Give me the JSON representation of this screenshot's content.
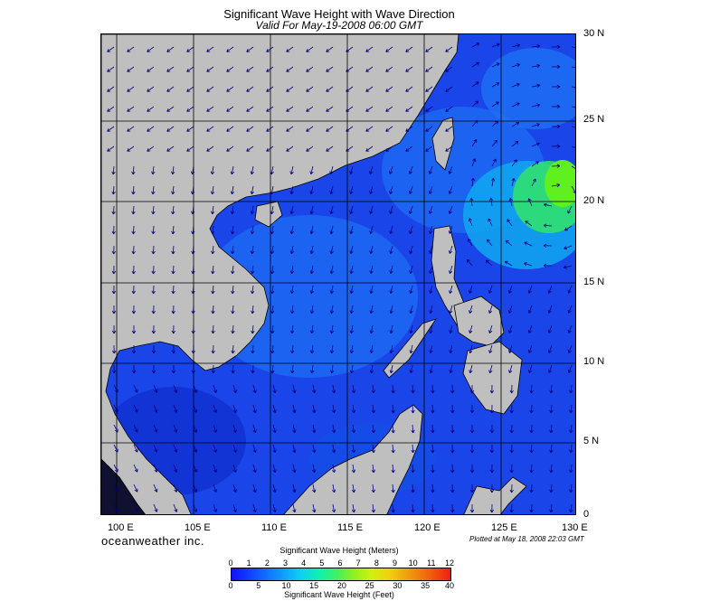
{
  "title": "Significant Wave Height with Wave Direction",
  "subtitle": "Valid For May-19-2008 06:00 GMT",
  "lat_labels": [
    "30 N",
    "25 N",
    "20 N",
    "15 N",
    "10 N",
    "5 N",
    "0"
  ],
  "lon_labels": [
    "100 E",
    "105 E",
    "110 E",
    "115 E",
    "120 E",
    "125 E",
    "130 E"
  ],
  "brand": "oceanweather inc.",
  "plotted": "Plotted at May 18, 2008 22:03 GMT",
  "colorbar": {
    "meters_title": "Significant Wave Height (Meters)",
    "feet_title": "Significant Wave Height (Feet)",
    "meters_ticks": [
      "0",
      "1",
      "2",
      "3",
      "4",
      "5",
      "6",
      "7",
      "8",
      "9",
      "10",
      "11",
      "12"
    ],
    "feet_ticks": [
      "0",
      "5",
      "10",
      "15",
      "20",
      "25",
      "30",
      "35",
      "40"
    ]
  },
  "colors": {
    "land": "#bfbfbf",
    "sea_calm": "#1a3fe0",
    "sea_moderate": "#1e6cf5",
    "sea_high": "#20e040",
    "arrow": "#000080"
  },
  "map_extent": {
    "lon": [
      99,
      130
    ],
    "lat": [
      0,
      30
    ]
  }
}
